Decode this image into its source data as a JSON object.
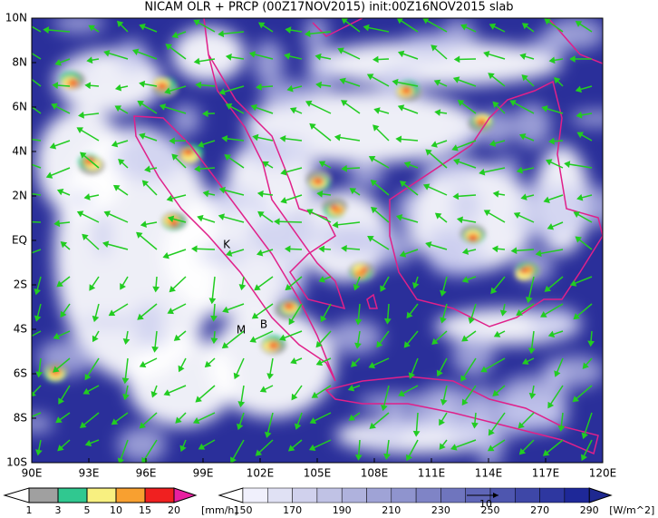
{
  "title": "NICAM OLR + PRCP (00Z17NOV2015) init:00Z16NOV2015 slab",
  "axes": {
    "x_labels": [
      "90E",
      "93E",
      "96E",
      "99E",
      "102E",
      "105E",
      "108E",
      "111E",
      "114E",
      "117E",
      "120E"
    ],
    "y_labels": [
      "10N",
      "8N",
      "6N",
      "4N",
      "2N",
      "EQ",
      "2S",
      "4S",
      "6S",
      "8S",
      "10S"
    ]
  },
  "places": [
    "K",
    "M",
    "B"
  ],
  "vector_reference": "10",
  "precip_bar": {
    "ticks": [
      1,
      3,
      5,
      10,
      15,
      20
    ],
    "unit": "[mm/h]"
  },
  "olr_bar": {
    "ticks": [
      150,
      170,
      190,
      210,
      230,
      250,
      270,
      290
    ],
    "unit": "[W/m^2]"
  }
}
